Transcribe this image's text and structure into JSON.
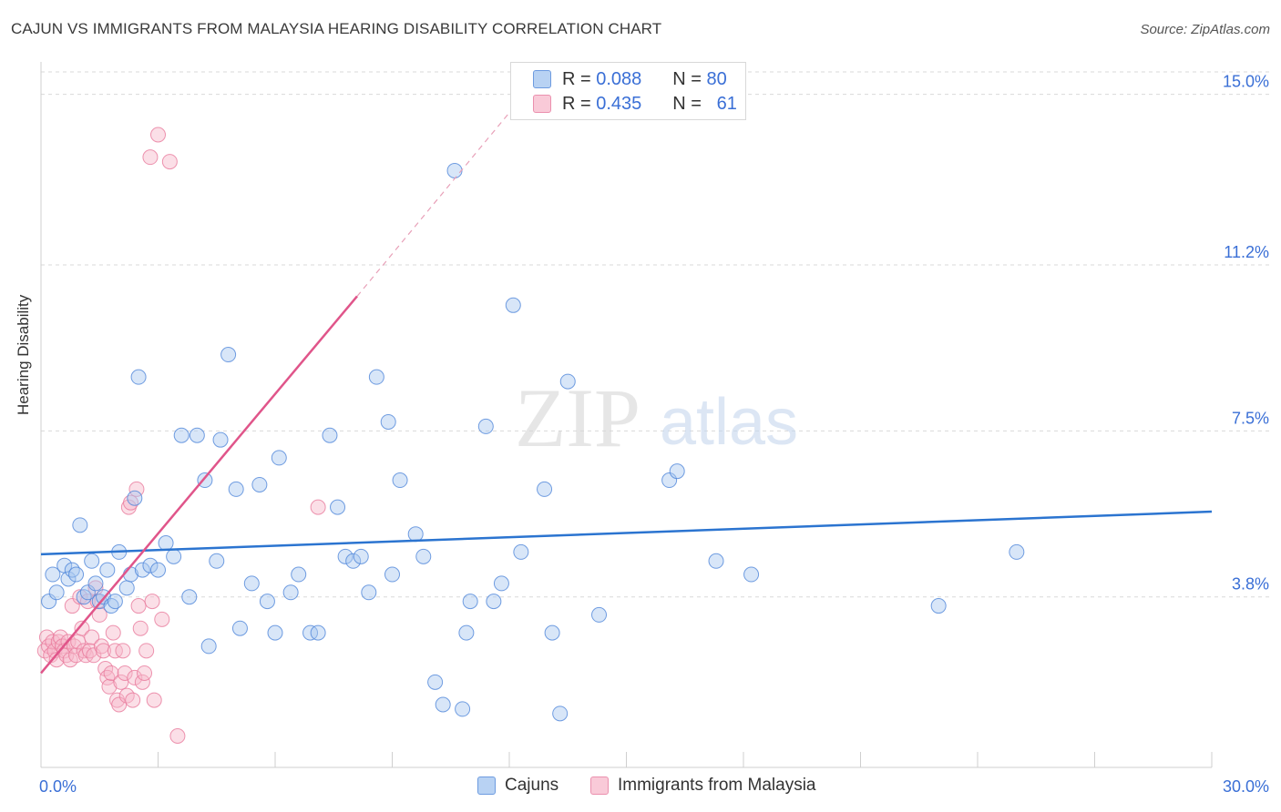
{
  "title": "CAJUN VS IMMIGRANTS FROM MALAYSIA HEARING DISABILITY CORRELATION CHART",
  "source": "Source: ZipAtlas.com",
  "watermark": {
    "zip": "ZIP",
    "atlas": "atlas"
  },
  "legend": {
    "rows": [
      {
        "r_label": "R =",
        "r_value": "0.088",
        "n_label": "N =",
        "n_value": "80"
      },
      {
        "r_label": "R =",
        "r_value": "0.435",
        "n_label": "N =",
        "n_value": "61"
      }
    ],
    "bottom": [
      "Cajuns",
      "Immigrants from Malaysia"
    ]
  },
  "colors": {
    "blue_fill": "#a8c8f0",
    "blue_stroke": "#4f86d9",
    "blue_line": "#2b74d0",
    "pink_fill": "#f6b7c9",
    "pink_stroke": "#e87a9c",
    "pink_line": "#e0558a",
    "axis_text": "#3a6fd6",
    "grid": "#d9d9d9"
  },
  "chart_data": {
    "type": "scatter",
    "title": "CAJUN VS IMMIGRANTS FROM MALAYSIA HEARING DISABILITY CORRELATION CHART",
    "xlabel": "",
    "ylabel": "Hearing Disability",
    "xlim": [
      0,
      30
    ],
    "ylim": [
      0,
      15.5
    ],
    "x_tick_labels": [
      "0.0%",
      "30.0%"
    ],
    "y_ticks": [
      3.8,
      7.5,
      11.2,
      15.0
    ],
    "y_tick_labels": [
      "3.8%",
      "7.5%",
      "11.2%",
      "15.0%"
    ],
    "series": [
      {
        "name": "Cajuns",
        "r": 0.088,
        "n": 80,
        "trend": {
          "x0": 0,
          "y0": 4.75,
          "x1": 30,
          "y1": 5.7
        },
        "points": [
          [
            0.2,
            3.7
          ],
          [
            0.3,
            4.3
          ],
          [
            0.4,
            3.9
          ],
          [
            0.6,
            4.5
          ],
          [
            0.7,
            4.2
          ],
          [
            0.8,
            4.4
          ],
          [
            0.9,
            4.3
          ],
          [
            1.0,
            5.4
          ],
          [
            1.1,
            3.8
          ],
          [
            1.2,
            3.9
          ],
          [
            1.3,
            4.6
          ],
          [
            1.4,
            4.1
          ],
          [
            1.5,
            3.7
          ],
          [
            1.6,
            3.8
          ],
          [
            1.7,
            4.4
          ],
          [
            1.8,
            3.6
          ],
          [
            1.9,
            3.7
          ],
          [
            2.0,
            4.8
          ],
          [
            2.2,
            4.0
          ],
          [
            2.3,
            4.3
          ],
          [
            2.4,
            6.0
          ],
          [
            2.5,
            8.7
          ],
          [
            2.6,
            4.4
          ],
          [
            2.8,
            4.5
          ],
          [
            3.0,
            4.4
          ],
          [
            3.2,
            5.0
          ],
          [
            3.4,
            4.7
          ],
          [
            3.6,
            7.4
          ],
          [
            3.8,
            3.8
          ],
          [
            4.0,
            7.4
          ],
          [
            4.2,
            6.4
          ],
          [
            4.3,
            2.7
          ],
          [
            4.5,
            4.6
          ],
          [
            4.6,
            7.3
          ],
          [
            4.8,
            9.2
          ],
          [
            5.0,
            6.2
          ],
          [
            5.1,
            3.1
          ],
          [
            5.4,
            4.1
          ],
          [
            5.6,
            6.3
          ],
          [
            5.8,
            3.7
          ],
          [
            6.0,
            3.0
          ],
          [
            6.1,
            6.9
          ],
          [
            6.4,
            3.9
          ],
          [
            6.6,
            4.3
          ],
          [
            6.9,
            3.0
          ],
          [
            7.1,
            3.0
          ],
          [
            7.4,
            7.4
          ],
          [
            7.6,
            5.8
          ],
          [
            7.8,
            4.7
          ],
          [
            8.0,
            4.6
          ],
          [
            8.2,
            4.7
          ],
          [
            8.4,
            3.9
          ],
          [
            8.6,
            8.7
          ],
          [
            8.9,
            7.7
          ],
          [
            9.0,
            4.3
          ],
          [
            9.2,
            6.4
          ],
          [
            9.6,
            5.2
          ],
          [
            9.8,
            4.7
          ],
          [
            10.1,
            1.9
          ],
          [
            10.3,
            1.4
          ],
          [
            10.6,
            13.3
          ],
          [
            10.8,
            1.3
          ],
          [
            10.9,
            3.0
          ],
          [
            11.0,
            3.7
          ],
          [
            11.4,
            7.6
          ],
          [
            11.6,
            3.7
          ],
          [
            11.8,
            4.1
          ],
          [
            12.1,
            10.3
          ],
          [
            12.3,
            4.8
          ],
          [
            12.9,
            6.2
          ],
          [
            13.1,
            3.0
          ],
          [
            13.3,
            1.2
          ],
          [
            13.5,
            8.6
          ],
          [
            14.3,
            3.4
          ],
          [
            16.1,
            6.4
          ],
          [
            16.3,
            6.6
          ],
          [
            17.3,
            4.6
          ],
          [
            18.2,
            4.3
          ],
          [
            23.0,
            3.6
          ],
          [
            25.0,
            4.8
          ]
        ]
      },
      {
        "name": "Immigrants from Malaysia",
        "r": 0.435,
        "n": 61,
        "trend": {
          "x0": 0,
          "y0": 2.1,
          "x1": 8.1,
          "y1": 10.5
        },
        "trend_extension": {
          "x0": 8.1,
          "y0": 10.5,
          "x1": 12.2,
          "y1": 14.8
        },
        "points": [
          [
            0.1,
            2.6
          ],
          [
            0.15,
            2.9
          ],
          [
            0.2,
            2.7
          ],
          [
            0.25,
            2.5
          ],
          [
            0.3,
            2.8
          ],
          [
            0.35,
            2.6
          ],
          [
            0.4,
            2.4
          ],
          [
            0.45,
            2.8
          ],
          [
            0.5,
            2.9
          ],
          [
            0.55,
            2.7
          ],
          [
            0.6,
            2.6
          ],
          [
            0.65,
            2.5
          ],
          [
            0.7,
            2.8
          ],
          [
            0.75,
            2.4
          ],
          [
            0.8,
            3.6
          ],
          [
            0.85,
            2.7
          ],
          [
            0.9,
            2.5
          ],
          [
            0.95,
            2.8
          ],
          [
            1.0,
            3.8
          ],
          [
            1.05,
            3.1
          ],
          [
            1.1,
            2.6
          ],
          [
            1.15,
            2.5
          ],
          [
            1.2,
            3.7
          ],
          [
            1.25,
            2.6
          ],
          [
            1.3,
            2.9
          ],
          [
            1.35,
            2.5
          ],
          [
            1.4,
            4.0
          ],
          [
            1.45,
            3.7
          ],
          [
            1.5,
            3.4
          ],
          [
            1.55,
            2.7
          ],
          [
            1.6,
            2.6
          ],
          [
            1.65,
            2.2
          ],
          [
            1.7,
            2.0
          ],
          [
            1.75,
            1.8
          ],
          [
            1.8,
            2.1
          ],
          [
            1.85,
            3.0
          ],
          [
            1.9,
            2.6
          ],
          [
            1.95,
            1.5
          ],
          [
            2.0,
            1.4
          ],
          [
            2.05,
            1.9
          ],
          [
            2.1,
            2.6
          ],
          [
            2.15,
            2.1
          ],
          [
            2.2,
            1.6
          ],
          [
            2.25,
            5.8
          ],
          [
            2.3,
            5.9
          ],
          [
            2.35,
            1.5
          ],
          [
            2.4,
            2.0
          ],
          [
            2.45,
            6.2
          ],
          [
            2.5,
            3.6
          ],
          [
            2.55,
            3.1
          ],
          [
            2.6,
            1.9
          ],
          [
            2.65,
            2.1
          ],
          [
            2.7,
            2.6
          ],
          [
            2.8,
            13.6
          ],
          [
            2.85,
            3.7
          ],
          [
            2.9,
            1.5
          ],
          [
            3.0,
            14.1
          ],
          [
            3.1,
            3.3
          ],
          [
            3.3,
            13.5
          ],
          [
            3.5,
            0.7
          ],
          [
            7.1,
            5.8
          ]
        ]
      }
    ]
  }
}
